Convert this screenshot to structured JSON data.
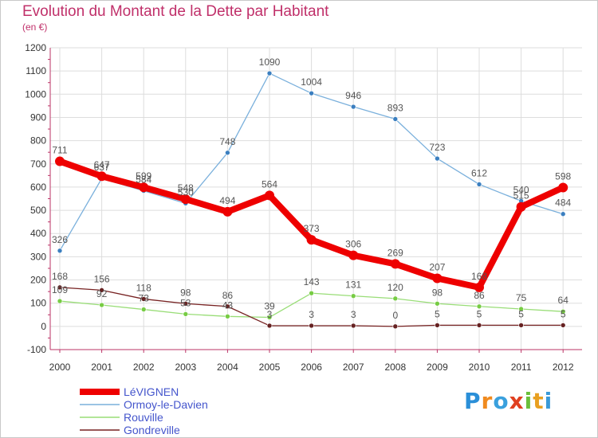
{
  "title": "Evolution du Montant de la Dette par Habitant",
  "subtitle": "(en €)",
  "logo": {
    "text": "Proxiti"
  },
  "chart_data": {
    "type": "line",
    "x": [
      "2000",
      "2001",
      "2002",
      "2003",
      "2004",
      "2005",
      "2006",
      "2007",
      "2008",
      "2009",
      "2010",
      "2011",
      "2012"
    ],
    "ylim": [
      -100,
      1200
    ],
    "yticks": [
      -100,
      0,
      100,
      200,
      300,
      400,
      500,
      600,
      700,
      800,
      900,
      1000,
      1100,
      1200
    ],
    "grid": true,
    "legend_position": "bottom-left",
    "series": [
      {
        "name": "LéVIGNEN",
        "color": "#ee0000",
        "width": 8,
        "values": [
          711,
          647,
          599,
          548,
          494,
          564,
          373,
          306,
          269,
          207,
          168,
          515,
          598
        ]
      },
      {
        "name": "Ormoy-le-Davien",
        "color": "#7ab0dc",
        "width": 1.3,
        "values": [
          326,
          637,
          584,
          530,
          748,
          1090,
          1004,
          946,
          893,
          723,
          612,
          540,
          484
        ]
      },
      {
        "name": "Rouville",
        "color": "#99dd77",
        "width": 1.3,
        "values": [
          109,
          92,
          73,
          53,
          43,
          39,
          143,
          131,
          120,
          98,
          86,
          75,
          64
        ]
      },
      {
        "name": "Gondreville",
        "color": "#772222",
        "width": 1.3,
        "values": [
          168,
          156,
          118,
          98,
          86,
          3,
          3,
          3,
          0,
          5,
          5,
          5,
          5
        ]
      }
    ]
  }
}
